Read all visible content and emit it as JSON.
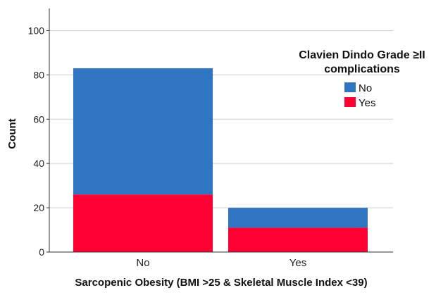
{
  "chart_data": {
    "type": "bar",
    "stacked": true,
    "categories": [
      "No",
      "Yes"
    ],
    "series": [
      {
        "name": "Yes",
        "values": [
          26,
          11
        ],
        "color": "#ff0033"
      },
      {
        "name": "No",
        "values": [
          57,
          9
        ],
        "color": "#2f75c1"
      }
    ],
    "xlabel": "Sarcopenic Obesity (BMI >25 & Skeletal Muscle Index <39)",
    "ylabel": "Count",
    "ylim": [
      0,
      110
    ],
    "yticks": [
      0,
      20,
      40,
      60,
      80,
      100
    ],
    "grid": true,
    "legend": {
      "title_lines": [
        "Clavien Dindo Grade ≥II",
        "complications"
      ],
      "placement": "top-right",
      "entries": [
        {
          "label": "No",
          "color": "#2f75c1"
        },
        {
          "label": "Yes",
          "color": "#ff0033"
        }
      ]
    }
  }
}
